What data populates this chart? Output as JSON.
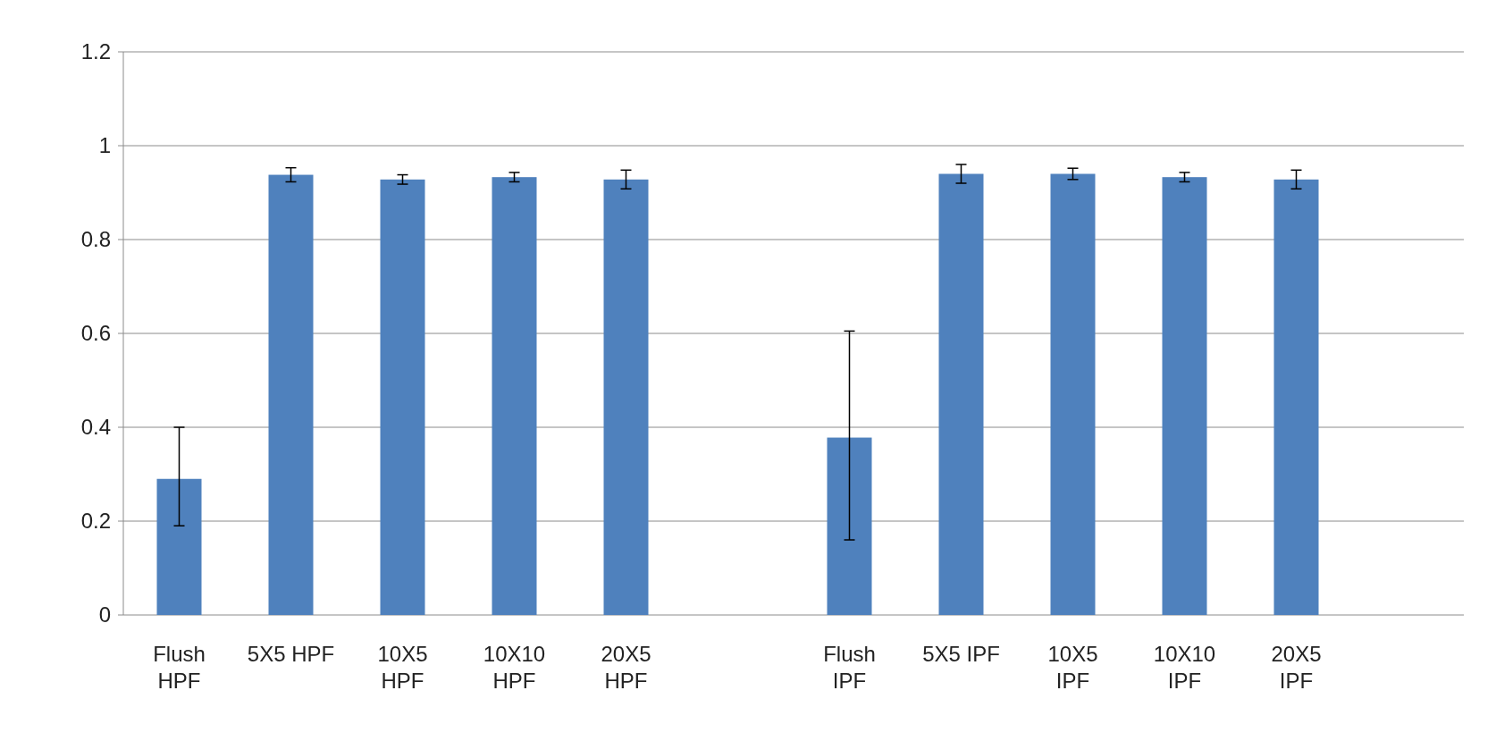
{
  "chart_data": {
    "type": "bar",
    "categories": [
      "Flush HPF",
      "5X5 HPF",
      "10X5 HPF",
      "10X10 HPF",
      "20X5 HPF",
      null,
      "Flush IPF",
      "5X5 IPF",
      "10X5 IPF",
      "10X10 IPF",
      "20X5 IPF"
    ],
    "values": [
      0.29,
      0.938,
      0.928,
      0.933,
      0.928,
      null,
      0.378,
      0.94,
      0.94,
      0.933,
      0.928
    ],
    "errors": [
      [
        0.19,
        0.4
      ],
      0.015,
      0.01,
      0.01,
      0.02,
      null,
      [
        0.16,
        0.605
      ],
      0.02,
      0.012,
      0.01,
      0.02
    ],
    "color": "#4f81bd",
    "ylim": [
      0,
      1.2
    ],
    "yticks": [
      0,
      0.2,
      0.4,
      0.6,
      0.8,
      1,
      1.2
    ],
    "grid": "y"
  }
}
